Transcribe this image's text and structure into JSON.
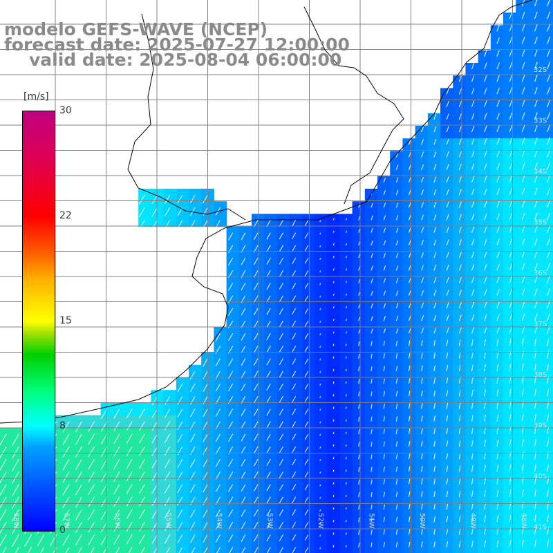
{
  "title": {
    "line1": "modelo GEFS-WAVE (NCEP)",
    "line2": "forecast date: 2025-07-27 12:00:00",
    "line3": "valid date: 2025-08-04 06:00:00"
  },
  "colorbar": {
    "unit": "[m/s]",
    "range": [
      0,
      30
    ],
    "ticks": [
      {
        "value": 30,
        "label": "30"
      },
      {
        "value": 22,
        "label": "22"
      },
      {
        "value": 15,
        "label": "15"
      },
      {
        "value": 8,
        "label": "8"
      },
      {
        "value": 0,
        "label": "0"
      }
    ]
  },
  "map": {
    "lon_range": [
      -58,
      -47
    ],
    "lat_range": [
      -41,
      -31
    ],
    "lat_labels": [
      "32S",
      "33S",
      "34S",
      "35S",
      "36S",
      "37S",
      "38S",
      "39S",
      "40S",
      "41S"
    ],
    "lon_labels": [
      "58W",
      "57W",
      "56W",
      "55W",
      "54W",
      "53W",
      "52W",
      "51W",
      "50W",
      "49W",
      "48W"
    ],
    "grid_color": "#808080",
    "land_color": "#ffffff",
    "coast_color": "#000000",
    "arrow_color": "#ffffff"
  }
}
